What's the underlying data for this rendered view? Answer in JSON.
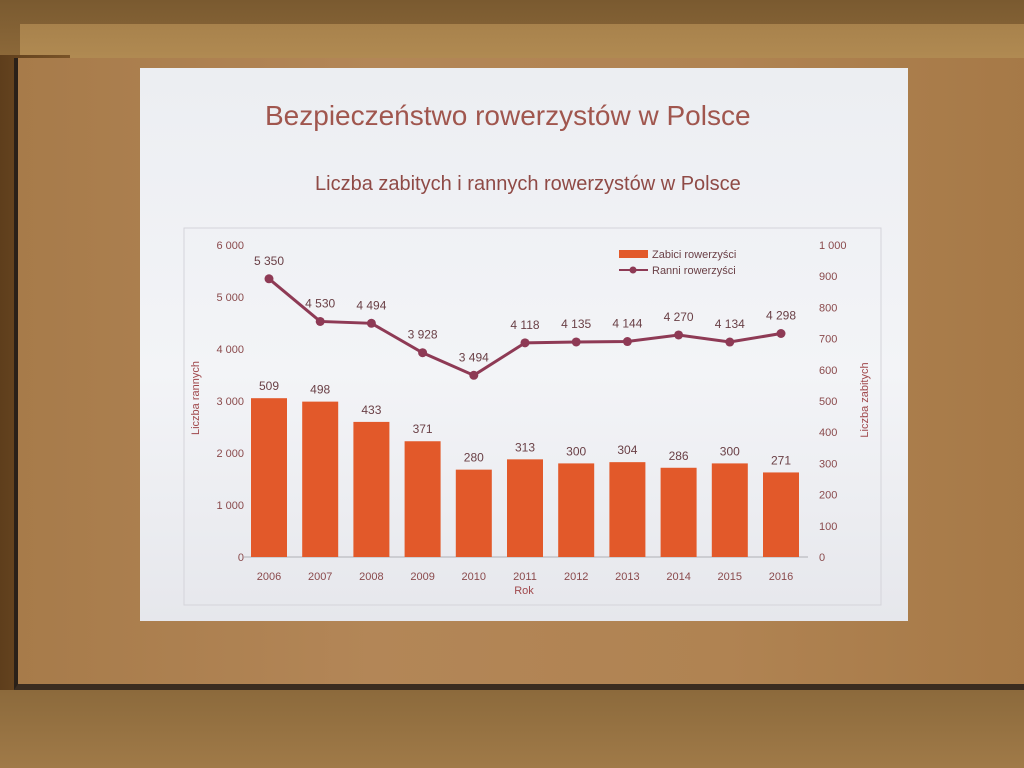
{
  "slide": {
    "title": "Bezpieczeństwo rowerzystów w Polsce"
  },
  "chart_data": {
    "type": "bar",
    "title": "Liczba zabitych i rannych rowerzystów w Polsce",
    "xlabel": "Rok",
    "ylabel_left": "Liczba rannych",
    "ylabel_right": "Liczba zabitych",
    "categories": [
      "2006",
      "2007",
      "2008",
      "2009",
      "2010",
      "2011",
      "2012",
      "2013",
      "2014",
      "2015",
      "2016"
    ],
    "series": [
      {
        "name": "Zabici rowerzyści",
        "type": "bar",
        "axis": "right",
        "color": "#e2592a",
        "values": [
          509,
          498,
          433,
          371,
          280,
          313,
          300,
          304,
          286,
          300,
          271
        ],
        "labels": [
          "509",
          "498",
          "433",
          "371",
          "280",
          "313",
          "300",
          "304",
          "286",
          "300",
          "271"
        ]
      },
      {
        "name": "Ranni rowerzyści",
        "type": "line",
        "axis": "left",
        "color": "#8e3a55",
        "values": [
          5350,
          4530,
          4494,
          3928,
          3494,
          4118,
          4135,
          4144,
          4270,
          4134,
          4298
        ],
        "labels": [
          "5 350",
          "4 530",
          "4 494",
          "3 928",
          "3 494",
          "4 118",
          "4 135",
          "4 144",
          "4 270",
          "4 134",
          "4 298"
        ]
      }
    ],
    "ylim_left": [
      0,
      6000
    ],
    "ylim_right": [
      0,
      1000
    ],
    "yticks_left": [
      "0",
      "1 000",
      "2 000",
      "3 000",
      "4 000",
      "5 000",
      "6 000"
    ],
    "yticks_right": [
      "0",
      "100",
      "200",
      "300",
      "400",
      "500",
      "600",
      "700",
      "800",
      "900",
      "1 000"
    ],
    "grid": false,
    "legend_position": "top-right"
  }
}
